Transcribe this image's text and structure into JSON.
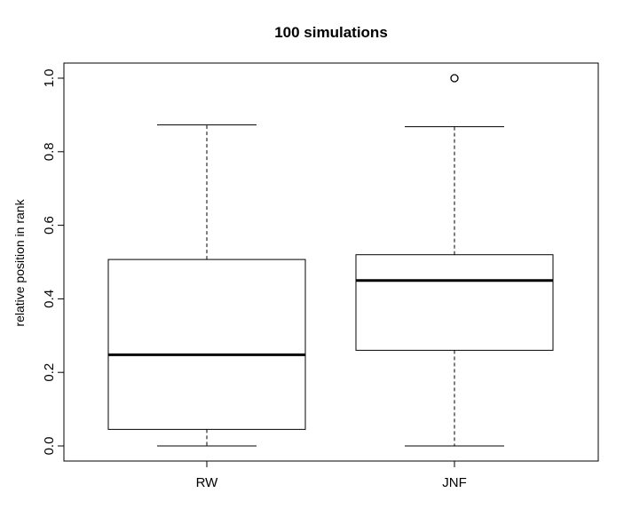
{
  "chart_data": {
    "type": "boxplot",
    "title": "100 simulations",
    "xlabel": "",
    "ylabel": "relative position in rank",
    "ylim": [
      0.0,
      1.0
    ],
    "yticks": [
      "0.0",
      "0.2",
      "0.4",
      "0.6",
      "0.8",
      "1.0"
    ],
    "categories": [
      "RW",
      "JNF"
    ],
    "boxes": [
      {
        "name": "RW",
        "min": 0.0,
        "q1": 0.045,
        "median": 0.248,
        "q3": 0.507,
        "max": 0.873,
        "outliers": []
      },
      {
        "name": "JNF",
        "min": 0.0,
        "q1": 0.26,
        "median": 0.45,
        "q3": 0.52,
        "max": 0.868,
        "outliers": [
          1.0
        ]
      }
    ],
    "grid": false,
    "legend": "none"
  }
}
